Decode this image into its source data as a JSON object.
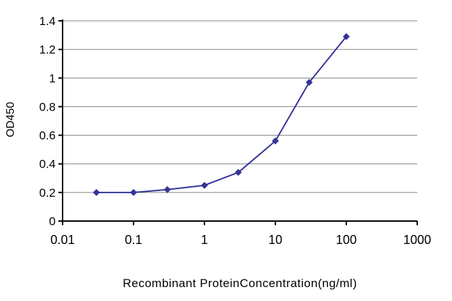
{
  "chart_data": {
    "type": "line",
    "title": "",
    "xlabel": "Recombinant ProteinConcentration(ng/ml)",
    "ylabel": "OD450",
    "x_scale": "log",
    "xlim": [
      0.01,
      1000
    ],
    "ylim": [
      0,
      1.4
    ],
    "x_ticks": [
      0.01,
      0.1,
      1,
      10,
      100,
      1000
    ],
    "y_ticks": [
      0,
      0.2,
      0.4,
      0.6,
      0.8,
      1,
      1.2,
      1.4
    ],
    "grid": "horizontal",
    "legend": "none",
    "marker": "diamond",
    "series": [
      {
        "name": "OD450",
        "x": [
          0.03,
          0.1,
          0.3,
          1,
          3,
          10,
          30,
          100
        ],
        "y": [
          0.2,
          0.2,
          0.22,
          0.25,
          0.34,
          0.56,
          0.97,
          1.29
        ]
      }
    ],
    "colors": {
      "line": "#333399",
      "marker": "#333399",
      "grid": "#808080",
      "axis": "#000000",
      "background": "#ffffff",
      "text": "#000000"
    }
  }
}
